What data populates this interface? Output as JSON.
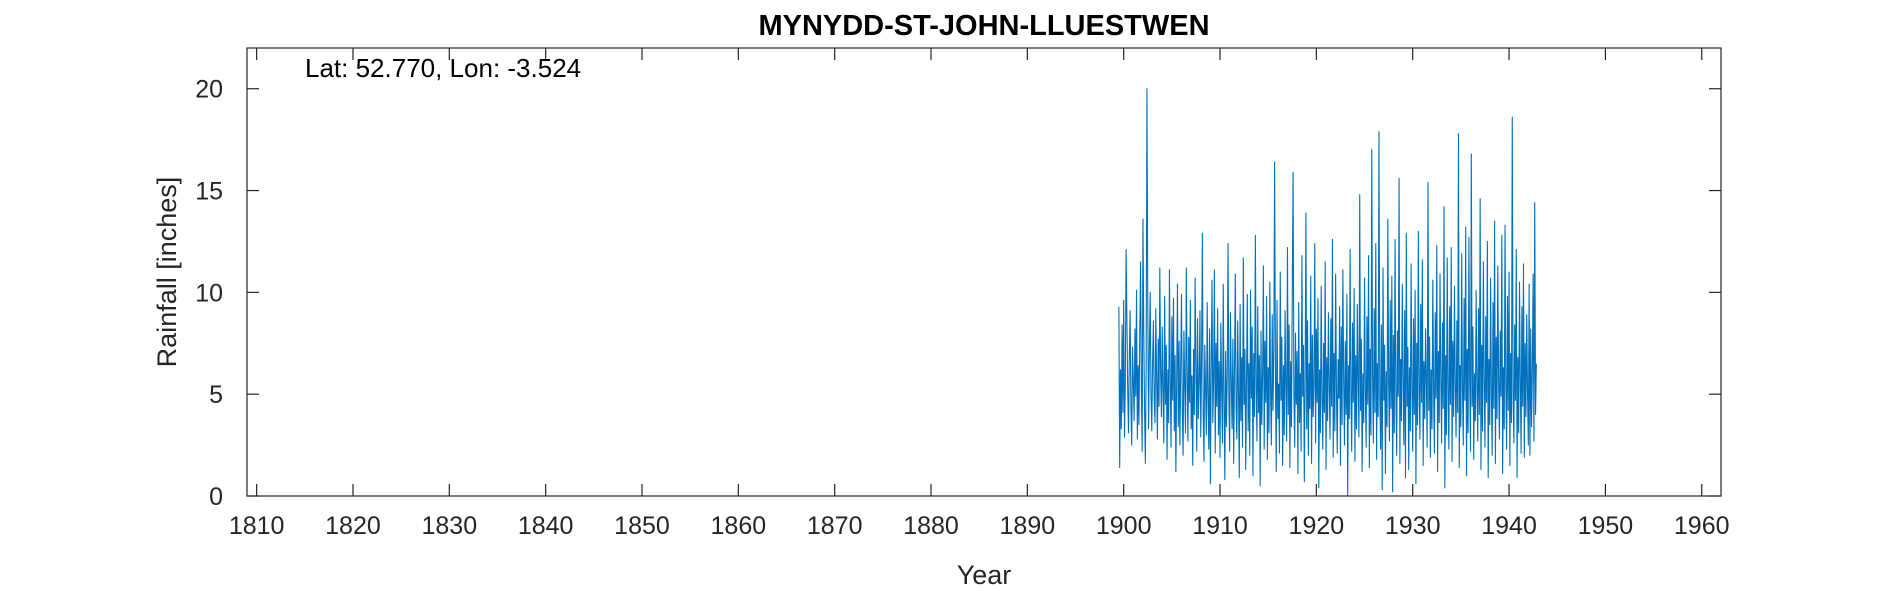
{
  "chart_data": {
    "type": "line",
    "title": "MYNYDD-ST-JOHN-LLUESTWEN",
    "xlabel": "Year",
    "ylabel": "Rainfall [inches]",
    "annotation": "Lat: 52.770, Lon: -3.524",
    "xlim": [
      1809,
      1962
    ],
    "ylim": [
      0,
      22
    ],
    "xticks": [
      1810,
      1820,
      1830,
      1840,
      1850,
      1860,
      1870,
      1880,
      1890,
      1900,
      1910,
      1920,
      1930,
      1940,
      1950,
      1960
    ],
    "yticks": [
      0,
      5,
      10,
      15,
      20
    ],
    "grid": false,
    "line_color": "#0072BD",
    "x_start": 1899.5,
    "x_step_months": 1,
    "series": [
      {
        "values": [
          9.3,
          1.4,
          6.2,
          3.3,
          8.4,
          4.1,
          9.6,
          2.9,
          5.4,
          12.1,
          8.7,
          5.2,
          3.1,
          6.8,
          9.1,
          4.4,
          2.5,
          7.3,
          5.6,
          3.7,
          8.2,
          4.9,
          10.1,
          2.8,
          6.4,
          3.5,
          7.9,
          11.5,
          5.3,
          2.2,
          13.6,
          8.1,
          4.2,
          1.6,
          6.5,
          20.0,
          9.4,
          3.3,
          7.1,
          10.0,
          5.1,
          3.2,
          6.6,
          8.6,
          4.8,
          3.6,
          9.2,
          5.7,
          2.8,
          7.7,
          4.4,
          11.2,
          6.1,
          3.9,
          8.3,
          5.2,
          2.6,
          9.8,
          4.5,
          7.4,
          1.8,
          6.2,
          3.6,
          11.1,
          5.5,
          2.4,
          8.8,
          4.7,
          9.7,
          3.2,
          6.9,
          1.2,
          5.8,
          10.4,
          3.4,
          7.6,
          2.5,
          6.3,
          9.9,
          4.2,
          2.0,
          8.1,
          5.4,
          3.1,
          11.2,
          6.0,
          2.7,
          7.8,
          4.6,
          9.6,
          3.3,
          5.9,
          1.5,
          7.2,
          4.0,
          10.7,
          6.4,
          2.2,
          8.7,
          3.8,
          5.5,
          9.1,
          2.9,
          6.7,
          12.9,
          4.1,
          1.7,
          7.4,
          5.2,
          3.0,
          9.5,
          4.9,
          2.3,
          8.2,
          0.6,
          6.1,
          10.6,
          3.6,
          5.8,
          11.1,
          2.1,
          7.5,
          4.4,
          9.2,
          3.0,
          6.6,
          1.9,
          8.5,
          5.3,
          2.6,
          10.4,
          4.7,
          0.8,
          7.1,
          3.4,
          6.0,
          12.4,
          4.9,
          2.2,
          9.0,
          5.6,
          3.3,
          7.7,
          1.6,
          6.2,
          10.9,
          4.3,
          2.8,
          8.6,
          5.1,
          0.9,
          9.4,
          3.7,
          6.8,
          2.4,
          11.7,
          4.5,
          7.2,
          1.3,
          5.7,
          9.9,
          3.2,
          6.5,
          2.0,
          10.1,
          4.8,
          8.3,
          1.0,
          7.0,
          3.9,
          12.8,
          5.4,
          2.7,
          9.3,
          4.1,
          6.9,
          0.5,
          8.1,
          3.5,
          5.9,
          11.3,
          2.3,
          7.6,
          4.6,
          9.8,
          1.8,
          6.3,
          3.1,
          10.5,
          5.0,
          2.5,
          8.9,
          4.2,
          7.3,
          16.4,
          6.1,
          1.2,
          9.6,
          3.8,
          5.5,
          2.1,
          11.0,
          4.7,
          7.8,
          1.5,
          6.4,
          3.0,
          9.1,
          5.3,
          2.7,
          12.2,
          4.0,
          8.4,
          1.4,
          6.6,
          3.4,
          10.2,
          15.9,
          5.1,
          2.4,
          8.0,
          4.5,
          7.1,
          1.1,
          9.5,
          3.6,
          6.0,
          2.2,
          11.8,
          4.9,
          7.4,
          0.7,
          5.7,
          13.9,
          3.3,
          8.6,
          2.0,
          6.5,
          4.3,
          10.8,
          1.6,
          7.9,
          3.9,
          5.4,
          12.4,
          2.6,
          8.2,
          4.6,
          9.7,
          0.4,
          6.2,
          3.1,
          10.3,
          5.0,
          2.3,
          7.5,
          4.1,
          11.5,
          1.3,
          6.8,
          3.7,
          9.0,
          5.5,
          2.8,
          8.7,
          4.4,
          12.6,
          1.9,
          7.0,
          3.2,
          10.9,
          5.2,
          2.1,
          6.7,
          4.8,
          9.3,
          1.5,
          8.3,
          3.5,
          11.1,
          5.8,
          2.5,
          7.6,
          4.0,
          9.9,
          0.0,
          6.4,
          3.8,
          12.1,
          5.1,
          2.2,
          8.5,
          4.6,
          10.2,
          1.7,
          6.9,
          3.3,
          9.4,
          5.6,
          2.9,
          14.8,
          4.2,
          7.7,
          1.2,
          6.0,
          3.6,
          10.7,
          5.3,
          2.4,
          8.8,
          4.5,
          11.8,
          1.4,
          7.2,
          3.0,
          17.0,
          5.9,
          2.6,
          9.2,
          4.1,
          12.4,
          1.8,
          6.5,
          3.9,
          17.9,
          5.0,
          2.3,
          8.4,
          0.3,
          11.2,
          4.7,
          7.4,
          1.1,
          6.1,
          3.4,
          13.6,
          5.5,
          2.7,
          9.6,
          4.3,
          10.8,
          0.2,
          7.9,
          3.1,
          12.6,
          5.2,
          2.0,
          8.1,
          4.9,
          15.6,
          1.6,
          6.7,
          3.7,
          10.4,
          5.7,
          2.5,
          9.1,
          0.9,
          12.9,
          4.4,
          7.3,
          1.3,
          6.3,
          3.2,
          11.4,
          5.4,
          2.2,
          8.7,
          4.0,
          10.1,
          0.6,
          7.5,
          3.5,
          13.0,
          5.1,
          2.8,
          9.4,
          4.6,
          11.6,
          1.5,
          6.6,
          3.8,
          8.2,
          5.6,
          2.4,
          15.4,
          4.2,
          7.8,
          1.9,
          6.2,
          3.3,
          10.6,
          5.3,
          2.1,
          9.0,
          4.8,
          12.3,
          1.2,
          7.1,
          3.6,
          10.9,
          5.8,
          2.6,
          8.5,
          4.3,
          14.2,
          0.4,
          6.9,
          3.0,
          11.7,
          5.0,
          2.3,
          9.3,
          4.5,
          12.2,
          1.7,
          7.6,
          3.9,
          10.3,
          5.5,
          2.9,
          8.6,
          4.1,
          17.8,
          1.4,
          6.4,
          3.4,
          11.9,
          5.2,
          2.5,
          9.7,
          4.7,
          13.2,
          1.0,
          7.2,
          3.1,
          12.7,
          5.7,
          2.2,
          16.8,
          4.4,
          8.3,
          1.8,
          6.0,
          3.7,
          10.1,
          5.4,
          2.7,
          9.2,
          4.0,
          14.6,
          1.3,
          7.4,
          3.2,
          11.5,
          5.9,
          2.4,
          8.8,
          4.6,
          12.5,
          0.9,
          6.7,
          3.5,
          10.7,
          5.1,
          2.0,
          9.5,
          4.3,
          13.5,
          1.6,
          7.8,
          3.8,
          11.3,
          5.6,
          2.8,
          8.1,
          4.9,
          12.8,
          1.1,
          6.3,
          3.3,
          13.3,
          5.3,
          2.3,
          9.8,
          4.2,
          11.0,
          1.5,
          7.0,
          3.6,
          18.6,
          5.0,
          2.6,
          8.4,
          4.7,
          12.1,
          0.9,
          6.8,
          3.1,
          10.5,
          5.7,
          2.1,
          9.3,
          4.4,
          11.4,
          1.9,
          7.5,
          3.9,
          8.9,
          5.2,
          2.5,
          10.4,
          2.0,
          8.2,
          3.4,
          6.1,
          10.9,
          2.7,
          14.4,
          4.0,
          6.5
        ]
      }
    ]
  }
}
